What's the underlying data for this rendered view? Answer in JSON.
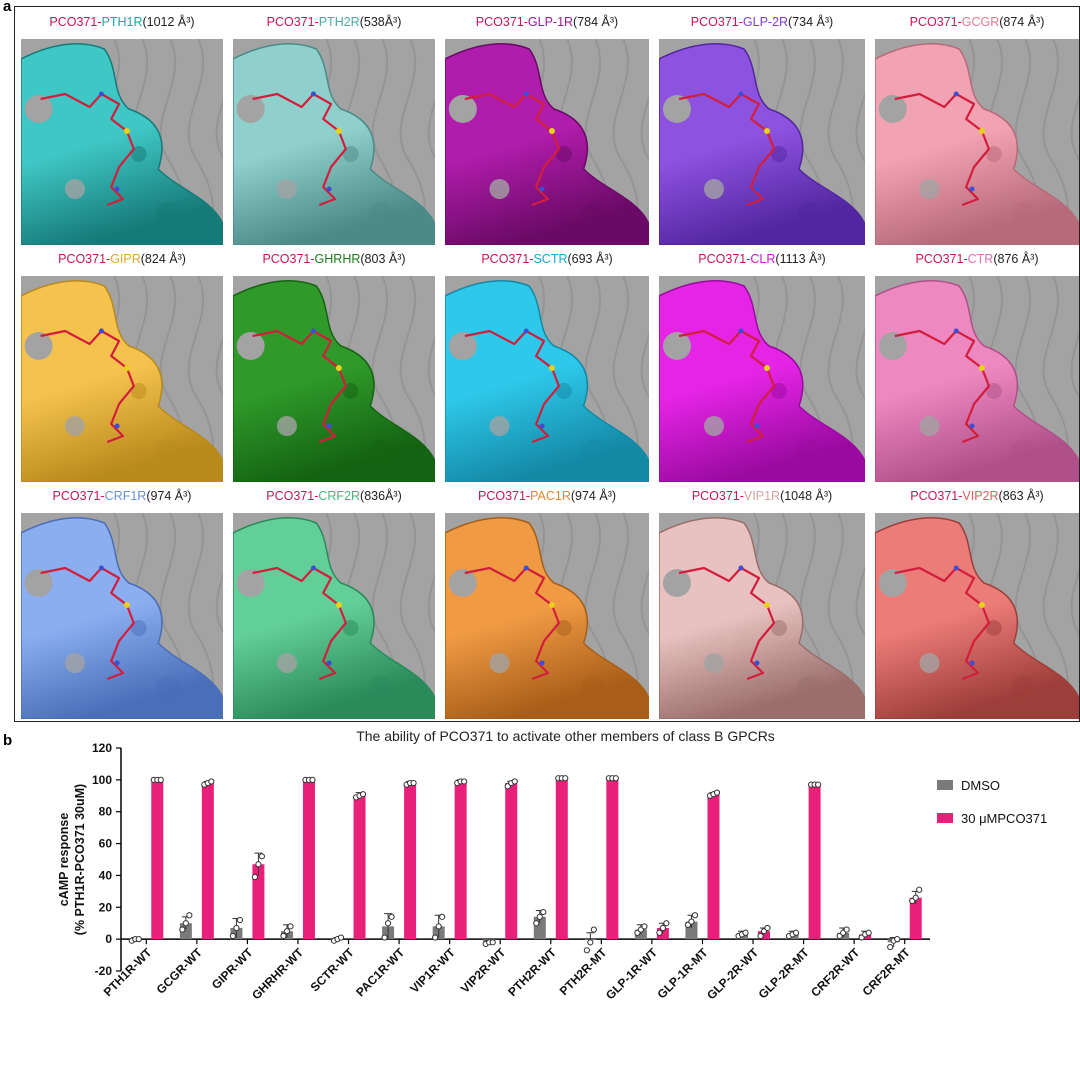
{
  "panel_a": {
    "label": "a",
    "ligand": "PCO371",
    "tiles": [
      {
        "receptor": "PTH1R",
        "volume": "(1012 Å³)",
        "color": "#3fc7c5",
        "dark": "#167a78",
        "label_color": "#1aa6a6",
        "sep": " "
      },
      {
        "receptor": "PTH2R",
        "volume": "(538Å³)",
        "color": "#8fd0cc",
        "dark": "#4b8a86",
        "label_color": "#4fa8a4",
        "sep": ""
      },
      {
        "receptor": "GLP-1R",
        "volume": "(784 Å³)",
        "color": "#b01cab",
        "dark": "#6a0a66",
        "label_color": "#9b1a96",
        "sep": ""
      },
      {
        "receptor": "GLP-2R",
        "volume": "(734 Å³)",
        "color": "#8e52e0",
        "dark": "#5226a0",
        "label_color": "#8040cc",
        "sep": ""
      },
      {
        "receptor": "GCGR",
        "volume": "(874 Å³)",
        "color": "#f2a3b3",
        "dark": "#b76a7a",
        "label_color": "#e07a90",
        "sep": ""
      },
      {
        "receptor": "GIPR",
        "volume": "(824 Å³)",
        "color": "#f5c24e",
        "dark": "#b98a1c",
        "label_color": "#e0a72a",
        "sep": ""
      },
      {
        "receptor": "GHRHR",
        "volume": "(803 Å³)",
        "color": "#2f9a2a",
        "dark": "#146312",
        "label_color": "#1d7a1a",
        "sep": ""
      },
      {
        "receptor": "SCTR",
        "volume": "(693 Å³)",
        "color": "#2ec8ea",
        "dark": "#1489a6",
        "label_color": "#18a8cc",
        "sep": ""
      },
      {
        "receptor": "CLR",
        "volume": "(1113 Å³)",
        "color": "#e524e6",
        "dark": "#9a0aa0",
        "label_color": "#d016d0",
        "sep": ""
      },
      {
        "receptor": "CTR",
        "volume": "(876 Å³)",
        "color": "#ee88c0",
        "dark": "#b0508a",
        "label_color": "#e070b0",
        "sep": ""
      },
      {
        "receptor": "CRF1R",
        "volume": "(974 Å³)",
        "color": "#8aaef0",
        "dark": "#4a6eb8",
        "label_color": "#6a90dc",
        "sep": ""
      },
      {
        "receptor": "CRF2R",
        "volume": "(836Å³)",
        "color": "#63cf98",
        "dark": "#2a8a5a",
        "label_color": "#3fba7a",
        "sep": ""
      },
      {
        "receptor": "PAC1R",
        "volume": "(974 Å³)",
        "color": "#f09a44",
        "dark": "#a85e18",
        "label_color": "#e08a30",
        "sep": ""
      },
      {
        "receptor": "VIP1R",
        "volume": "(1048 Å³)",
        "color": "#e8c2c0",
        "dark": "#9a6e6c",
        "label_color": "#d8a4a2",
        "sep": ""
      },
      {
        "receptor": "VIP2R",
        "volume": "(863 Å³)",
        "color": "#ec7c78",
        "dark": "#9e3e3a",
        "label_color": "#e0605c",
        "sep": ""
      }
    ]
  },
  "panel_b": {
    "label": "b"
  },
  "chart_data": {
    "type": "bar",
    "title": "The ability of PCO371 to activate other members of class B GPCRs",
    "ylabel_line1": "cAMP response",
    "ylabel_line2": "(% PTH1R-PCO371 30uM)",
    "ylim": [
      -20,
      120
    ],
    "yticks": [
      -20,
      0,
      20,
      40,
      60,
      80,
      100,
      120
    ],
    "categories": [
      "PTH1R-WT",
      "GCGR-WT",
      "GIPR-WT",
      "GHRHR-WT",
      "SCTR-WT",
      "PAC1R-WT",
      "VIP1R-WT",
      "VIP2R-WT",
      "PTH2R-WT",
      "PTH2R-MT",
      "GLP-1R-WT",
      "GLP-1R-MT",
      "GLP-2R-WT",
      "GLP-2R-MT",
      "CRF2R-WT",
      "CRF2R-MT"
    ],
    "series": [
      {
        "name": "DMSO",
        "color": "#7a7a7a",
        "values": [
          0,
          10,
          7,
          5,
          0,
          8,
          8,
          -2,
          14,
          0,
          6,
          11,
          3,
          3,
          4,
          -2
        ],
        "errors": [
          1,
          4,
          6,
          4,
          1,
          8,
          7,
          1,
          4,
          4,
          3,
          4,
          2,
          2,
          3,
          3
        ],
        "points": [
          [
            -1,
            0,
            0
          ],
          [
            6,
            10,
            15
          ],
          [
            2,
            7,
            12
          ],
          [
            2,
            5,
            8
          ],
          [
            -1,
            0,
            1
          ],
          [
            1,
            10,
            14
          ],
          [
            1,
            8,
            14
          ],
          [
            -3,
            -2,
            -2
          ],
          [
            10,
            14,
            17
          ],
          [
            -7,
            -2,
            6
          ],
          [
            4,
            6,
            8
          ],
          [
            9,
            11,
            15
          ],
          [
            2,
            3,
            4
          ],
          [
            2,
            3,
            4
          ],
          [
            2,
            4,
            6
          ],
          [
            -5,
            -1,
            0
          ]
        ]
      },
      {
        "name": "30 μMPCO371",
        "color": "#e8207a",
        "values": [
          100,
          98,
          47,
          100,
          90,
          98,
          99,
          98,
          101,
          101,
          7,
          91,
          5,
          97,
          3,
          26
        ],
        "errors": [
          1,
          1,
          7,
          1,
          2,
          1,
          1,
          1,
          1,
          1,
          3,
          1,
          2,
          1,
          2,
          4
        ],
        "points": [
          [
            100,
            100,
            100
          ],
          [
            97,
            98,
            99
          ],
          [
            39,
            47,
            52
          ],
          [
            100,
            100,
            100
          ],
          [
            89,
            90,
            91
          ],
          [
            97,
            98,
            98
          ],
          [
            98,
            99,
            99
          ],
          [
            96,
            98,
            99
          ],
          [
            101,
            101,
            101
          ],
          [
            101,
            101,
            101
          ],
          [
            4,
            7,
            10
          ],
          [
            90,
            91,
            92
          ],
          [
            2,
            5,
            7
          ],
          [
            97,
            97,
            97
          ],
          [
            1,
            3,
            4
          ],
          [
            24,
            26,
            31
          ]
        ]
      }
    ],
    "legend_position": "right"
  }
}
